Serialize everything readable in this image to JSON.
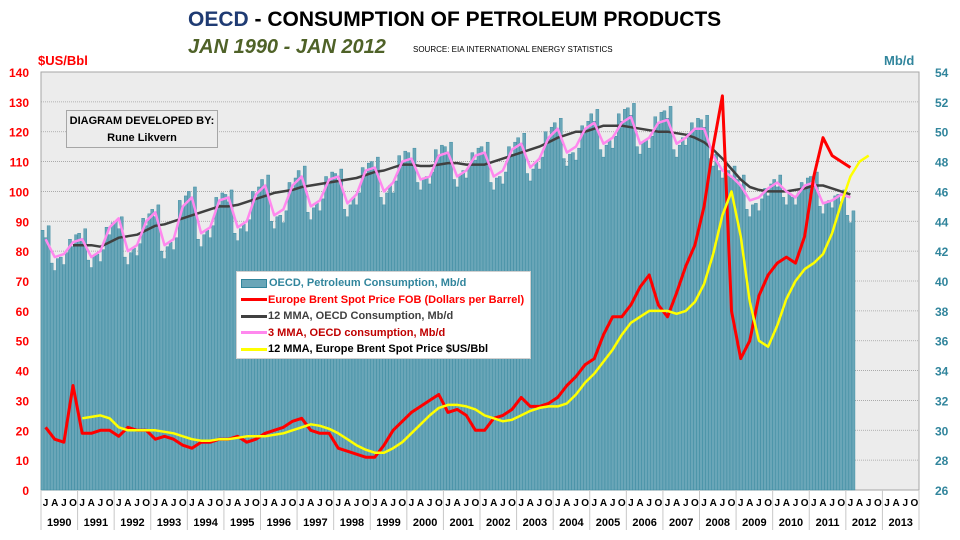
{
  "header": {
    "title_prefix": "OECD",
    "title_rest": " - CONSUMPTION OF PETROLEUM PRODUCTS",
    "subtitle": "JAN 1990 - JAN 2012",
    "source": "SOURCE: EIA INTERNATIONAL ENERGY STATISTICS"
  },
  "credit": {
    "line1": "DIAGRAM DEVELOPED BY:",
    "line2": "Rune Likvern"
  },
  "colors": {
    "bars": "#6aa6b8",
    "bar_edge": "#31859c",
    "brent": "#ff0000",
    "mma12_consumption": "#404040",
    "mma3_consumption": "#ff88ee",
    "mma12_brent": "#ffff00",
    "left_axis": "#ff0000",
    "right_axis": "#31859c",
    "plot_bg": "#ececec"
  },
  "chart_data": {
    "type": "bar",
    "title": "OECD - CONSUMPTION OF PETROLEUM PRODUCTS",
    "subtitle": "JAN 1990 - JAN 2012",
    "ylabel_left": "$US/Bbl",
    "ylabel_right": "Mb/d",
    "ylim_left": [
      0,
      140
    ],
    "ylim_right": [
      26,
      54
    ],
    "yticks_left": [
      0,
      10,
      20,
      30,
      40,
      50,
      60,
      70,
      80,
      90,
      100,
      110,
      120,
      130,
      140
    ],
    "yticks_right": [
      26,
      28,
      30,
      32,
      34,
      36,
      38,
      40,
      42,
      44,
      46,
      48,
      50,
      52,
      54
    ],
    "grid": true,
    "x_start": "1990-01",
    "x_end_axis": "2013-12",
    "month_ticks": [
      "J",
      "A",
      "J",
      "O"
    ],
    "years": [
      "1990",
      "1991",
      "1992",
      "1993",
      "1994",
      "1995",
      "1996",
      "1997",
      "1998",
      "1999",
      "2000",
      "2001",
      "2002",
      "2003",
      "2004",
      "2005",
      "2006",
      "2007",
      "2008",
      "2009",
      "2010",
      "2011",
      "2012",
      "2013"
    ],
    "legend_position": "center",
    "legend": [
      {
        "key": "consumption",
        "label": "OECD, Petroleum Consumption, Mb/d",
        "color": "#31859c"
      },
      {
        "key": "brent",
        "label": "Europe Brent Spot Price FOB (Dollars per Barrel)",
        "color": "#ff0000"
      },
      {
        "key": "mma12_consumption",
        "label": "12 MMA, OECD Consumption, Mb/d",
        "color": "#404040"
      },
      {
        "key": "mma3_consumption",
        "label": "3 MMA, OECD consumption, Mb/d",
        "color": "#c00000"
      },
      {
        "key": "mma12_brent",
        "label": "12 MMA, Europe Brent Spot Price $US/Bbl",
        "color": "#000000"
      }
    ],
    "quarterly_x": "Each series value is a quarter start (Jan, Apr, Jul, Oct) from 1990-Q1",
    "series": [
      {
        "name": "OECD, Petroleum Consumption, Mb/d",
        "axis": "right",
        "type": "bar",
        "values": [
          43.4,
          41.2,
          41.6,
          42.8,
          43.2,
          41.4,
          41.8,
          43.6,
          44.0,
          41.6,
          42.2,
          44.2,
          44.8,
          42.0,
          42.6,
          45.4,
          46.0,
          42.8,
          43.4,
          45.6,
          45.8,
          43.2,
          43.8,
          46.0,
          46.8,
          44.0,
          44.4,
          46.6,
          47.4,
          44.6,
          45.2,
          47.0,
          47.2,
          44.8,
          45.6,
          47.6,
          48.0,
          45.6,
          46.4,
          48.4,
          48.6,
          46.6,
          47.0,
          48.8,
          49.0,
          46.8,
          47.4,
          48.6,
          49.0,
          46.6,
          47.0,
          49.0,
          49.6,
          47.2,
          48.0,
          50.0,
          50.6,
          48.2,
          48.6,
          50.4,
          51.2,
          48.8,
          49.4,
          51.2,
          51.6,
          49.0,
          49.4,
          51.0,
          51.4,
          48.8,
          49.6,
          50.6,
          50.8,
          48.2,
          47.4,
          47.4,
          46.8,
          44.8,
          45.2,
          46.2,
          46.8,
          45.6,
          45.6,
          46.6,
          47.0,
          45.0,
          45.4,
          45.8,
          44.4
        ]
      },
      {
        "name": "Europe Brent Spot Price FOB (Dollars per Barrel)",
        "axis": "left",
        "type": "line",
        "values": [
          21,
          17,
          16,
          35,
          19,
          19,
          20,
          20,
          18,
          21,
          20,
          20,
          17,
          18,
          17,
          15,
          14,
          16,
          16,
          17,
          17,
          18,
          16,
          17,
          19,
          20,
          21,
          23,
          24,
          20,
          19,
          19,
          14,
          13,
          12,
          11,
          11,
          15,
          20,
          23,
          26,
          28,
          30,
          32,
          26,
          27,
          25,
          20,
          20,
          24,
          25,
          27,
          31,
          28,
          28,
          29,
          31,
          35,
          38,
          42,
          44,
          52,
          58,
          58,
          62,
          68,
          72,
          62,
          58,
          66,
          75,
          82,
          95,
          115,
          132,
          60,
          44,
          50,
          65,
          72,
          76,
          78,
          76,
          85,
          105,
          118,
          112,
          110,
          108
        ]
      },
      {
        "name": "12 MMA, OECD Consumption, Mb/d",
        "axis": "right",
        "type": "line",
        "values": [
          null,
          null,
          null,
          42.4,
          42.4,
          42.4,
          42.3,
          42.6,
          42.9,
          43.0,
          43.1,
          43.4,
          43.7,
          43.8,
          44.0,
          44.2,
          44.4,
          44.6,
          44.8,
          45.0,
          45.0,
          45.1,
          45.3,
          45.5,
          45.7,
          45.9,
          46.0,
          46.1,
          46.3,
          46.4,
          46.5,
          46.6,
          46.7,
          46.8,
          46.9,
          47.1,
          47.3,
          47.4,
          47.6,
          47.8,
          47.8,
          47.7,
          47.7,
          47.8,
          47.9,
          47.9,
          47.8,
          47.8,
          47.8,
          48.0,
          48.2,
          48.4,
          48.6,
          48.8,
          49.0,
          49.3,
          49.6,
          49.8,
          50.0,
          50.0,
          50.2,
          50.4,
          50.4,
          50.4,
          50.3,
          50.2,
          50.1,
          50.0,
          50.0,
          49.9,
          49.8,
          49.6,
          49.3,
          48.8,
          48.2,
          47.5,
          46.8,
          46.3,
          46.1,
          46.0,
          46.0,
          46.0,
          46.1,
          46.2,
          46.4,
          46.4,
          46.2,
          46.0,
          45.8
        ]
      },
      {
        "name": "3 MMA, OECD consumption, Mb/d",
        "axis": "right",
        "type": "line",
        "values": [
          42.8,
          41.6,
          41.8,
          42.6,
          42.8,
          41.6,
          42.0,
          43.6,
          44.2,
          42.0,
          42.4,
          44.0,
          44.6,
          42.4,
          42.8,
          45.0,
          45.6,
          43.2,
          43.6,
          45.4,
          45.6,
          43.6,
          44.0,
          45.8,
          46.4,
          44.4,
          44.8,
          46.4,
          47.0,
          45.0,
          45.4,
          46.8,
          47.0,
          45.2,
          45.8,
          47.4,
          47.6,
          46.0,
          46.6,
          48.0,
          48.2,
          46.8,
          47.0,
          48.4,
          48.6,
          47.0,
          47.4,
          48.4,
          48.6,
          47.0,
          47.4,
          48.8,
          49.2,
          47.6,
          48.2,
          49.6,
          50.2,
          48.6,
          49.0,
          50.2,
          50.6,
          49.2,
          49.6,
          50.6,
          51.0,
          49.2,
          49.6,
          50.6,
          50.8,
          49.2,
          49.6,
          50.2,
          50.2,
          48.4,
          47.4,
          47.0,
          46.4,
          45.4,
          45.6,
          46.2,
          46.6,
          46.0,
          45.6,
          46.4,
          46.6,
          45.2,
          45.4,
          45.8,
          45.6
        ]
      },
      {
        "name": "12 MMA, Europe Brent Spot Price $US/Bbl",
        "axis": "left",
        "type": "line",
        "values": [
          null,
          null,
          null,
          null,
          24,
          24.5,
          25,
          24,
          21,
          20,
          20,
          20,
          20,
          19.5,
          19,
          18,
          17,
          16.5,
          16.5,
          17,
          17,
          17.5,
          18,
          18,
          18,
          18.5,
          19,
          20,
          21,
          22,
          21.5,
          20.5,
          19,
          17,
          15,
          13.5,
          12.5,
          12.5,
          14,
          16,
          19,
          22,
          25,
          27.5,
          28.5,
          28.5,
          28,
          27,
          25,
          24,
          23,
          23.5,
          25,
          26.5,
          27.5,
          28,
          28,
          29,
          32,
          36,
          39,
          43,
          47,
          52,
          56,
          58,
          60,
          60,
          60,
          59,
          60,
          63,
          69,
          79,
          92,
          100,
          85,
          63,
          50,
          48,
          55,
          64,
          70,
          74,
          76,
          79,
          86,
          96,
          105,
          110,
          112
        ]
      }
    ]
  }
}
